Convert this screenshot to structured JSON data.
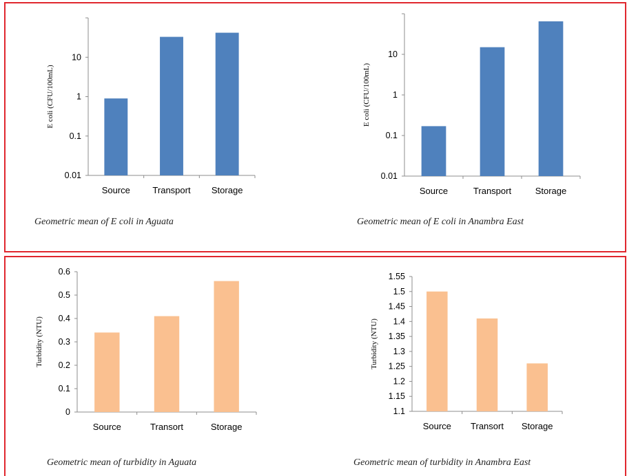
{
  "colors": {
    "ecoli_bar": "#4f81bd",
    "turbidity_bar": "#fac090",
    "frame": "#e0262d"
  },
  "captions": {
    "c1": "Geometric mean of E coli in Aguata",
    "c2": "Geometric mean of E coli in Anambra East",
    "c3": "Geometric mean of turbidity in Aguata",
    "c4": "Geometric mean of turbidity in Anambra East"
  },
  "chart_data": [
    {
      "type": "bar",
      "yscale": "log",
      "ylabel": "E coli (CFU/100mL)",
      "categories": [
        "Source",
        "Transport",
        "Storage"
      ],
      "values": [
        0.9,
        33,
        42
      ],
      "ylim": [
        0.01,
        100
      ],
      "ytick_values": [
        0.01,
        0.1,
        1,
        10
      ],
      "ytick_labels": [
        "0.01",
        "0.1",
        "1",
        "10"
      ],
      "color": "#4f81bd",
      "grid": false
    },
    {
      "type": "bar",
      "yscale": "log",
      "ylabel": "E coli (CFU/100mL)",
      "categories": [
        "Source",
        "Transport",
        "Storage"
      ],
      "values": [
        0.17,
        15,
        65
      ],
      "ylim": [
        0.01,
        100
      ],
      "ytick_values": [
        0.01,
        0.1,
        1,
        10
      ],
      "ytick_labels": [
        "0.01",
        "0.1",
        "1",
        "10"
      ],
      "color": "#4f81bd",
      "grid": false
    },
    {
      "type": "bar",
      "yscale": "linear",
      "ylabel": "Turbidity (NTU)",
      "categories": [
        "Source",
        "Transort",
        "Storage"
      ],
      "values": [
        0.34,
        0.41,
        0.56
      ],
      "ylim": [
        0,
        0.6
      ],
      "ytick_values": [
        0,
        0.1,
        0.2,
        0.3,
        0.4,
        0.5,
        0.6
      ],
      "ytick_labels": [
        "0",
        "0.1",
        "0.2",
        "0.3",
        "0.4",
        "0.5",
        "0.6"
      ],
      "color": "#fac090",
      "grid": false
    },
    {
      "type": "bar",
      "yscale": "linear",
      "ylabel": "Turbidity (NTU)",
      "categories": [
        "Source",
        "Transort",
        "Storage"
      ],
      "values": [
        1.5,
        1.41,
        1.26
      ],
      "ylim": [
        1.1,
        1.55
      ],
      "ytick_values": [
        1.1,
        1.15,
        1.2,
        1.25,
        1.3,
        1.35,
        1.4,
        1.45,
        1.5,
        1.55
      ],
      "ytick_labels": [
        "1.1",
        "1.15",
        "1.2",
        "1.25",
        "1.3",
        "1.35",
        "1.4",
        "1.45",
        "1.5",
        "1.55"
      ],
      "color": "#fac090",
      "grid": false
    }
  ]
}
